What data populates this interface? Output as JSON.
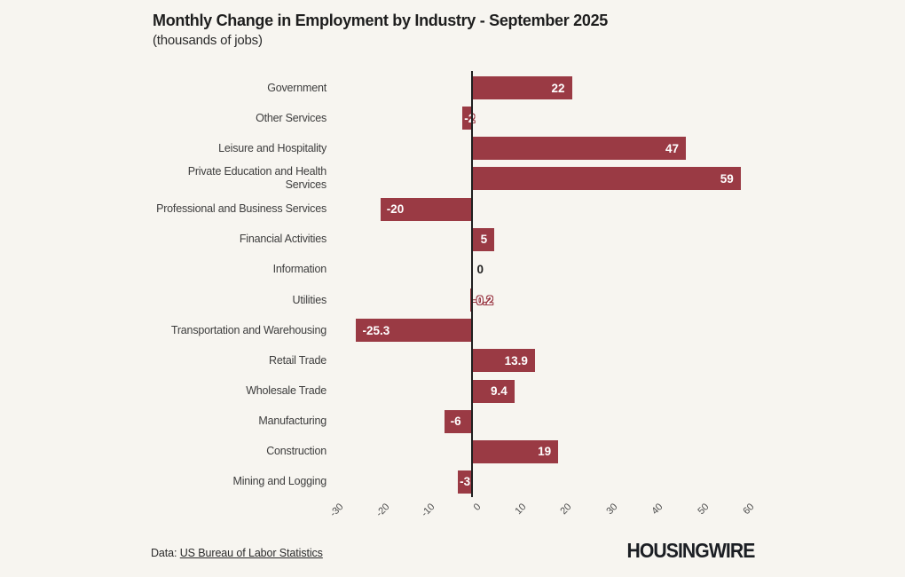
{
  "header": {
    "title": "Monthly Change in Employment by Industry - September 2025",
    "subtitle": "(thousands of jobs)"
  },
  "footer": {
    "source_prefix": "Data: ",
    "source_link_text": "US Bureau of Labor Statistics",
    "logo_text": "HOUSINGWIRE"
  },
  "colors": {
    "background": "#f7f5f0",
    "bar": "#9a3a44",
    "axis": "#1f1f1f",
    "category_label": "#3d3d3d",
    "tick_label": "#4d4d4d",
    "value_inside": "#ffffff",
    "value_zero": "#1f1f1f"
  },
  "chart_data": {
    "type": "bar",
    "orientation": "horizontal",
    "title": "Monthly Change in Employment by Industry - September 2025",
    "subtitle": "(thousands of jobs)",
    "xlabel": "",
    "ylabel": "",
    "xlim": [
      -35,
      65
    ],
    "x_ticks": [
      -30,
      -20,
      -10,
      0,
      10,
      20,
      30,
      40,
      50,
      60
    ],
    "grid": false,
    "legend": false,
    "categories": [
      "Government",
      "Other Services",
      "Leisure and Hospitality",
      "Private Education and Health\nServices",
      "Professional and Business Services",
      "Financial Activities",
      "Information",
      "Utilities",
      "Transportation and Warehousing",
      "Retail Trade",
      "Wholesale Trade",
      "Manufacturing",
      "Construction",
      "Mining and Logging"
    ],
    "values": [
      22,
      -2,
      47,
      59,
      -20,
      5,
      0,
      -0.2,
      -25.3,
      13.9,
      9.4,
      -6,
      19,
      -3
    ]
  }
}
